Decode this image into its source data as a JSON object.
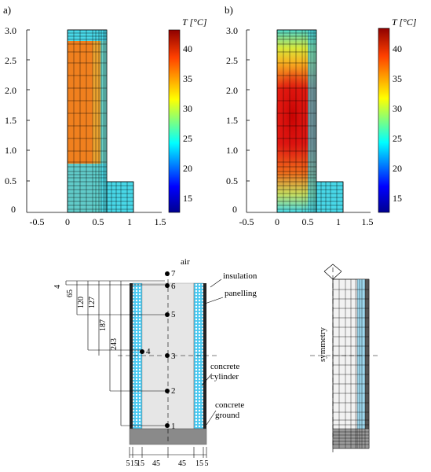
{
  "panels": [
    {
      "label": "a)",
      "colorbar_title": "T [°C]",
      "colorbar_ticks": [
        "40",
        "35",
        "30",
        "25",
        "20",
        "15"
      ],
      "y_ticks": [
        "3.0",
        "2.5",
        "2.0",
        "1.5",
        "1.0",
        "0.5",
        "0"
      ],
      "x_ticks": [
        "-0.5",
        "0",
        "0.5",
        "1",
        "1.5"
      ]
    },
    {
      "label": "b)",
      "colorbar_title": "T [°C]",
      "colorbar_ticks": [
        "40",
        "35",
        "30",
        "25",
        "20",
        "15"
      ],
      "y_ticks": [
        "3.0",
        "2.5",
        "2.0",
        "1.5",
        "1.0",
        "0.5",
        "0"
      ],
      "x_ticks": [
        "-0.5",
        "0",
        "0.5",
        "1",
        "1.5"
      ]
    }
  ],
  "section": {
    "air_label": "air",
    "point_labels": [
      "7",
      "6",
      "5",
      "4",
      "3",
      "2",
      "1"
    ],
    "callouts": {
      "insulation": "insulation",
      "panelling": "panelling",
      "concrete_cylinder": [
        "concrete",
        "cylinder"
      ],
      "concrete_ground": [
        "concrete",
        "ground"
      ]
    },
    "depth_dims": [
      "4",
      "65",
      "120",
      "127",
      "187",
      "243"
    ],
    "width_dims": [
      "5",
      "15",
      "15",
      "45",
      "45",
      "15",
      "5"
    ]
  },
  "mesh": {
    "axis_label": "symmetry"
  },
  "colors": {
    "panel_a_core": "#f0801e",
    "cyan": "#48d8e8",
    "colormap": [
      "#00008f",
      "#0000ff",
      "#00ffff",
      "#7fff7f",
      "#ffff00",
      "#ff7f00",
      "#ff0000",
      "#7f0000"
    ]
  }
}
